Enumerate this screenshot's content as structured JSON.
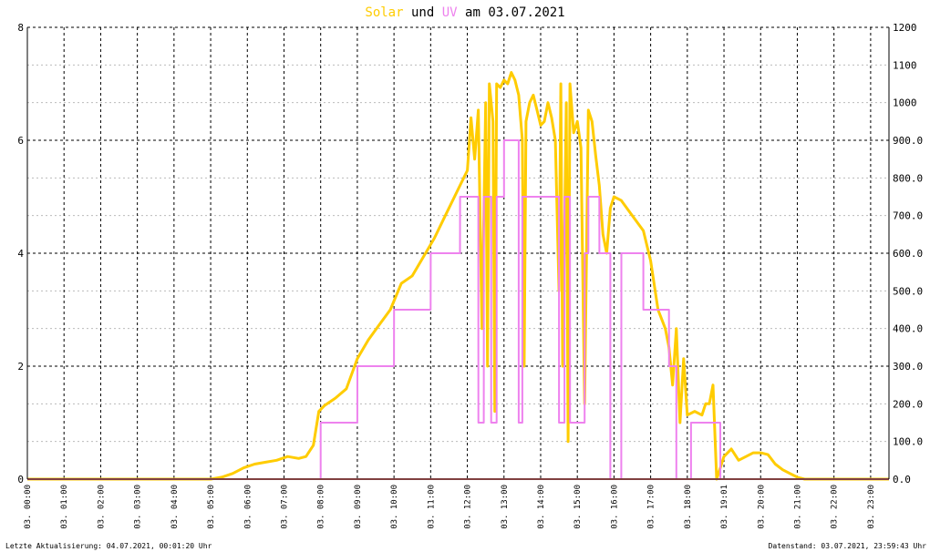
{
  "title": {
    "solar": "Solar",
    "und": "und",
    "uv": "UV",
    "am": "am",
    "date": "03.07.2021"
  },
  "footer": {
    "left": "Letzte Aktualisierung: 04.07.2021, 00:01:20 Uhr",
    "right": "Datenstand: 03.07.2021, 23:59:43 Uhr"
  },
  "colors": {
    "solar": "#ffcc00",
    "uv": "#ee82ee",
    "baseline": "#ff8080",
    "grid": "#000000",
    "minor_grid": "#bbbbbb"
  },
  "chart_data": {
    "type": "line",
    "x_ticks": [
      "03. 00:00",
      "03. 01:00",
      "03. 02:00",
      "03. 03:00",
      "03. 04:00",
      "03. 05:00",
      "03. 06:00",
      "03. 07:00",
      "03. 08:00",
      "03. 09:00",
      "03. 10:00",
      "03. 11:00",
      "03. 12:00",
      "03. 13:00",
      "03. 14:00",
      "03. 15:00",
      "03. 16:00",
      "03. 17:00",
      "03. 18:00",
      "03. 19:01",
      "03. 20:00",
      "03. 21:00",
      "03. 22:00",
      "03. 23:00"
    ],
    "x_range_hours": [
      0,
      23.5
    ],
    "y_left_ticks": [
      "0",
      "2",
      "4",
      "6",
      "8"
    ],
    "y_left_range": [
      0,
      8
    ],
    "y_right_ticks": [
      "0.0",
      "100.0",
      "200.0",
      "300.0",
      "400.0",
      "500.0",
      "600.0",
      "700.0",
      "800.0",
      "900.0",
      "1000",
      "1100",
      "1200"
    ],
    "y_right_range": [
      0,
      1200
    ],
    "grid": true,
    "series": [
      {
        "name": "Solar",
        "axis": "right",
        "x": [
          0,
          5.0,
          5.3,
          5.6,
          5.9,
          6.2,
          6.5,
          6.8,
          7.1,
          7.4,
          7.6,
          7.8,
          7.95,
          8.1,
          8.4,
          8.7,
          9.0,
          9.3,
          9.6,
          9.9,
          10.2,
          10.5,
          10.8,
          11.1,
          11.4,
          11.7,
          12.0,
          12.1,
          12.2,
          12.3,
          12.4,
          12.5,
          12.55,
          12.6,
          12.7,
          12.75,
          12.8,
          12.9,
          13.0,
          13.1,
          13.2,
          13.3,
          13.4,
          13.5,
          13.55,
          13.6,
          13.7,
          13.8,
          13.9,
          14.0,
          14.1,
          14.2,
          14.3,
          14.4,
          14.5,
          14.55,
          14.6,
          14.7,
          14.75,
          14.8,
          14.9,
          15.0,
          15.1,
          15.2,
          15.3,
          15.4,
          15.5,
          15.6,
          15.7,
          15.8,
          15.9,
          16.0,
          16.2,
          16.5,
          16.8,
          17.0,
          17.2,
          17.4,
          17.5,
          17.6,
          17.7,
          17.8,
          17.9,
          18.0,
          18.2,
          18.4,
          18.5,
          18.6,
          18.7,
          18.8,
          19.0,
          19.2,
          19.4,
          19.6,
          19.8,
          20.0,
          20.2,
          20.4,
          20.6,
          20.8,
          21.0,
          21.2,
          21.5,
          21.8,
          22.0,
          23.5
        ],
        "y": [
          0,
          0,
          5,
          15,
          30,
          40,
          45,
          50,
          60,
          55,
          60,
          90,
          180,
          195,
          215,
          240,
          320,
          370,
          410,
          450,
          520,
          540,
          590,
          640,
          700,
          760,
          820,
          960,
          850,
          980,
          400,
          1000,
          300,
          1050,
          950,
          180,
          1050,
          1040,
          1060,
          1050,
          1080,
          1060,
          1020,
          900,
          300,
          950,
          1000,
          1020,
          980,
          940,
          950,
          1000,
          960,
          900,
          500,
          1050,
          300,
          1000,
          100,
          1050,
          920,
          950,
          880,
          200,
          980,
          950,
          860,
          780,
          650,
          600,
          720,
          750,
          740,
          700,
          660,
          580,
          450,
          400,
          350,
          250,
          400,
          150,
          320,
          170,
          180,
          170,
          200,
          200,
          250,
          0,
          60,
          80,
          50,
          60,
          70,
          70,
          65,
          40,
          25,
          15,
          5,
          0,
          0,
          0,
          0,
          0
        ]
      },
      {
        "name": "UV",
        "axis": "left",
        "x": [
          0,
          8.0,
          8.001,
          9.0,
          9.001,
          10.0,
          10.001,
          11.0,
          11.001,
          11.8,
          11.801,
          12.3,
          12.301,
          12.45,
          12.451,
          12.65,
          12.651,
          12.8,
          12.801,
          13.0,
          13.001,
          13.4,
          13.401,
          13.5,
          13.501,
          14.5,
          14.501,
          14.65,
          14.651,
          14.8,
          14.801,
          15.2,
          15.201,
          15.3,
          15.301,
          15.6,
          15.601,
          15.9,
          15.901,
          16.2,
          16.201,
          16.8,
          16.801,
          17.5,
          17.501,
          17.7,
          17.701,
          18.1,
          18.101,
          18.9,
          18.901,
          23.5
        ],
        "y": [
          0,
          0,
          1,
          1,
          2,
          2,
          3,
          3,
          4,
          4,
          5,
          5,
          1,
          1,
          5,
          5,
          1,
          1,
          5,
          5,
          6,
          6,
          1,
          1,
          5,
          5,
          1,
          1,
          5,
          5,
          1,
          1,
          4,
          4,
          5,
          5,
          4,
          4,
          0,
          0,
          4,
          4,
          3,
          3,
          2,
          2,
          0,
          0,
          1,
          1,
          0,
          0
        ]
      }
    ]
  }
}
